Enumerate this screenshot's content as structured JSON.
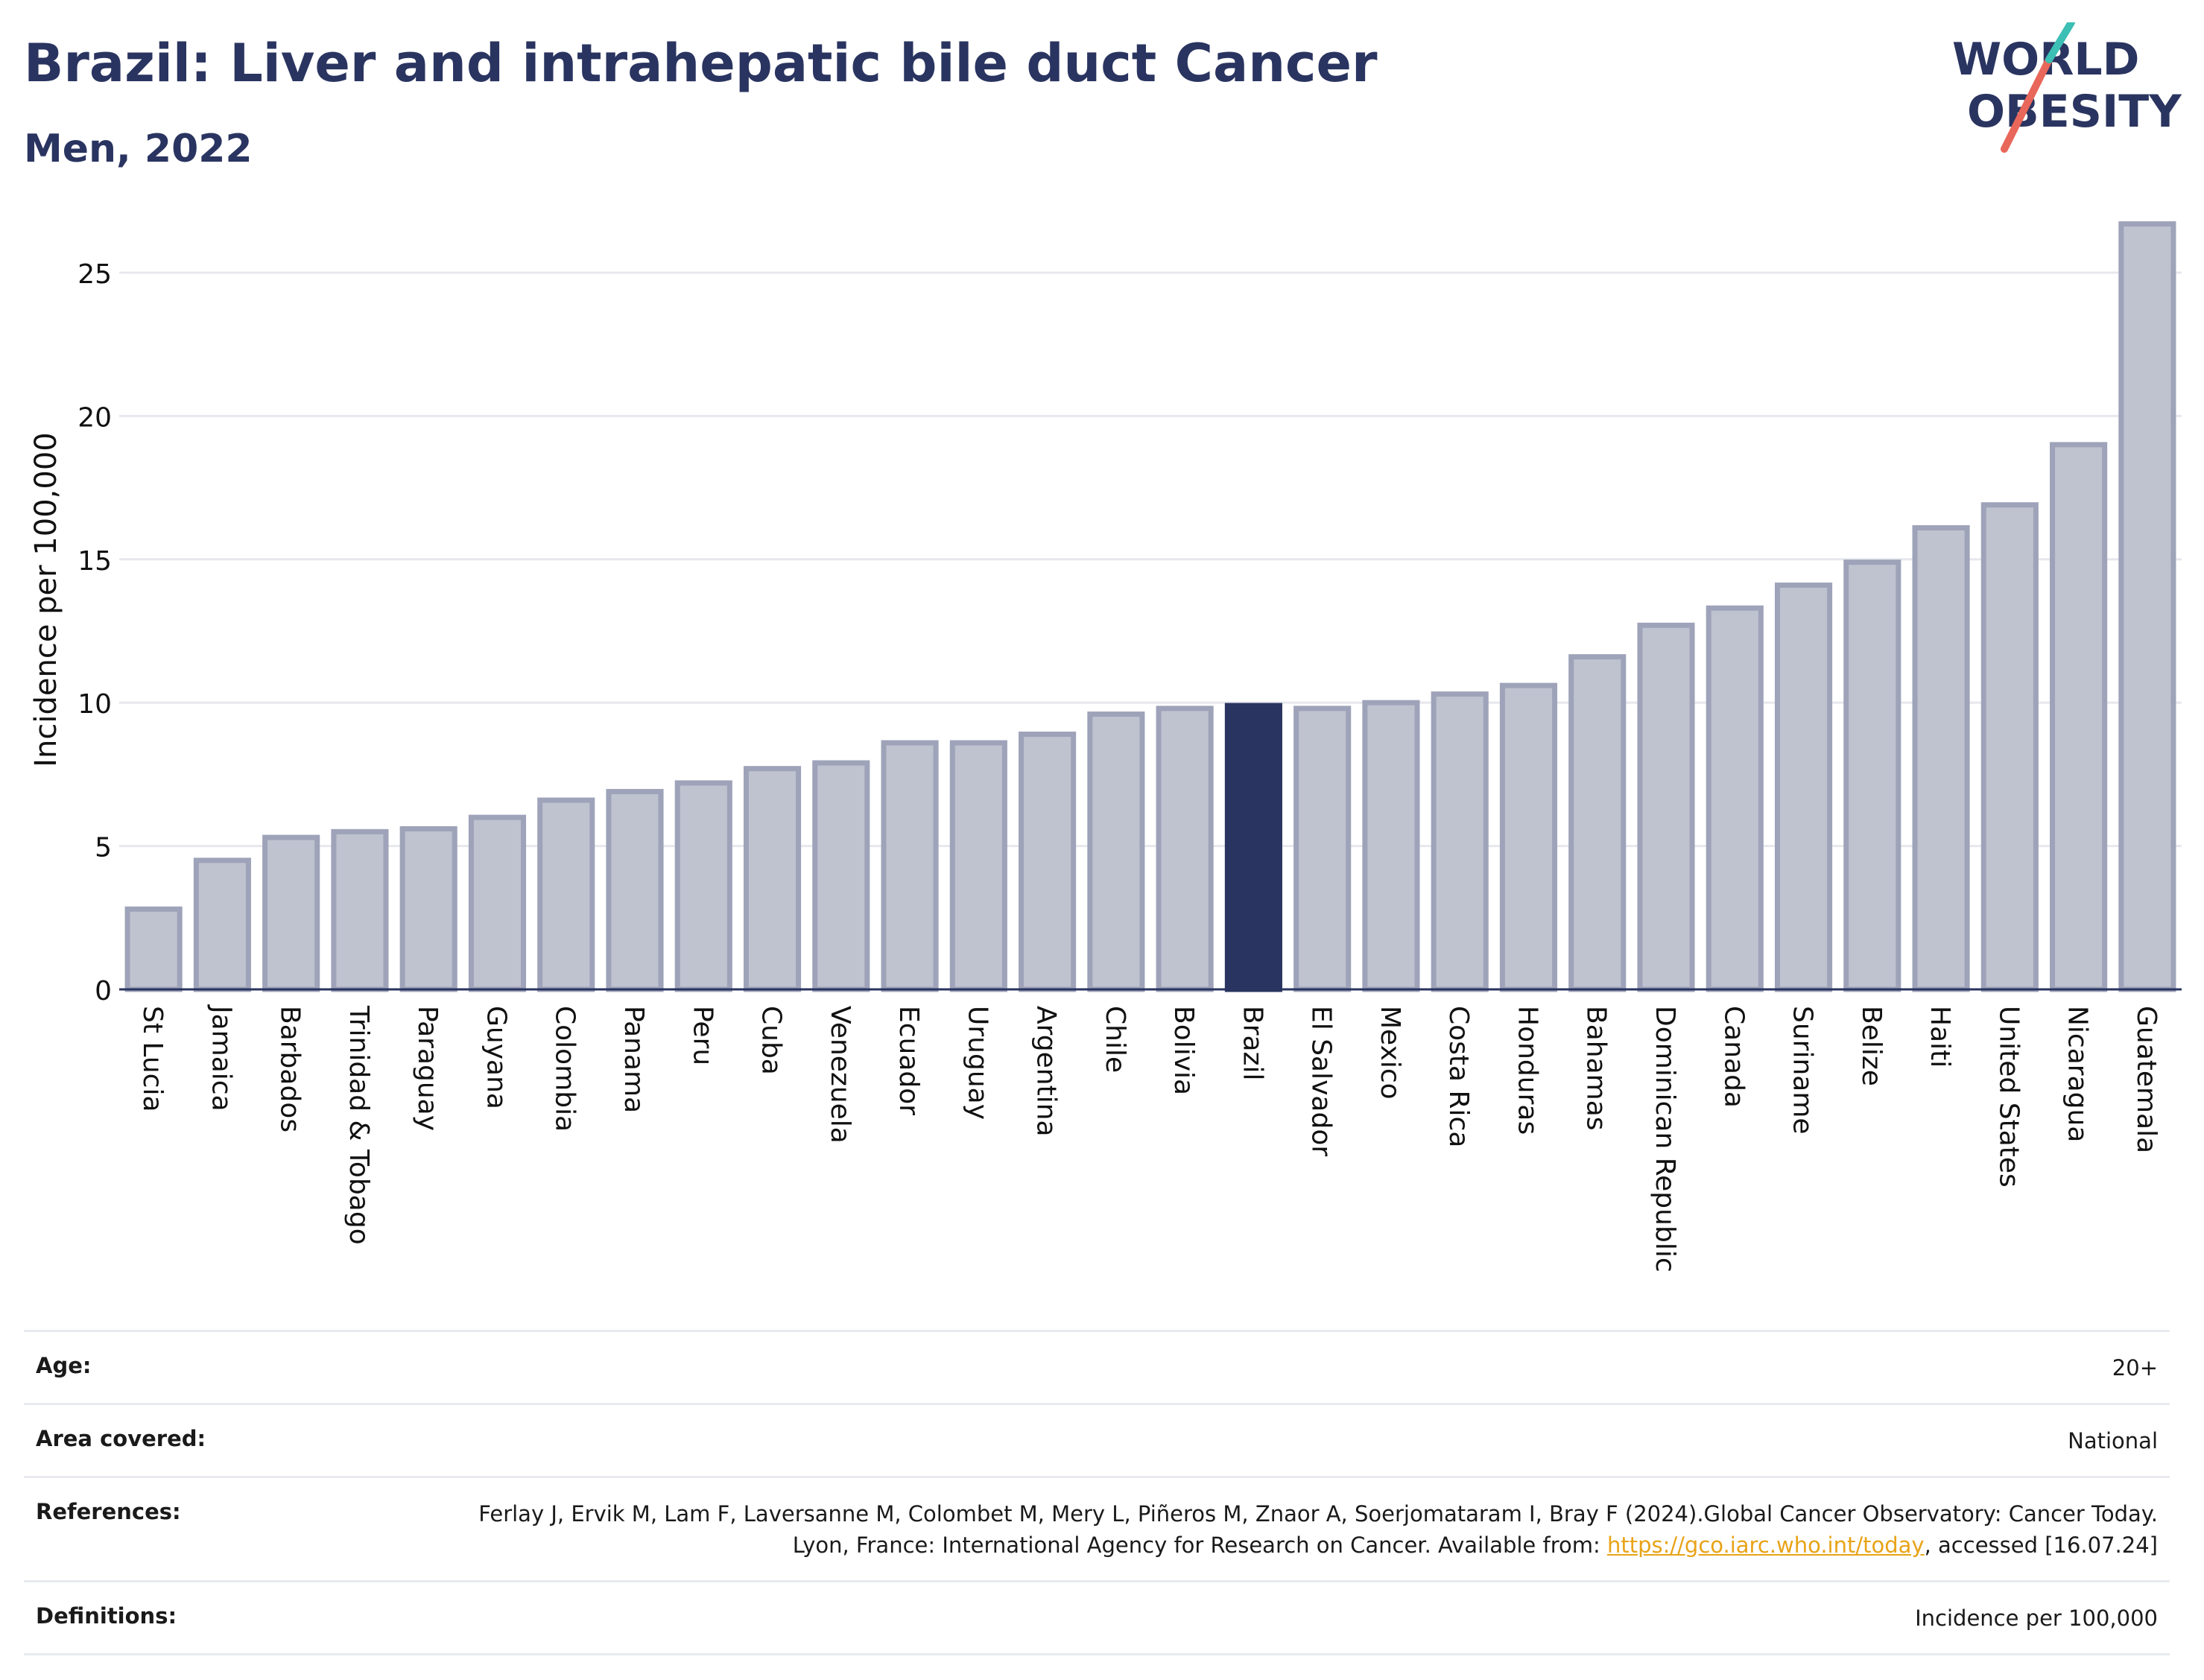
{
  "header": {
    "title": "Brazil: Liver and intrahepatic bile duct Cancer",
    "subtitle": "Men, 2022"
  },
  "logo": {
    "line1": "WORLD",
    "line2": "OBESITY"
  },
  "chart_data": {
    "type": "bar",
    "ylabel": "Incidence per 100,000",
    "xlabel": "",
    "ylim": [
      0,
      27
    ],
    "yticks": [
      0,
      5,
      10,
      15,
      20,
      25
    ],
    "grid": true,
    "categories": [
      "St Lucia",
      "Jamaica",
      "Barbados",
      "Trinidad & Tobago",
      "Paraguay",
      "Guyana",
      "Colombia",
      "Panama",
      "Peru",
      "Cuba",
      "Venezuela",
      "Ecuador",
      "Uruguay",
      "Argentina",
      "Chile",
      "Bolivia",
      "Brazil",
      "El Salvador",
      "Mexico",
      "Costa Rica",
      "Honduras",
      "Bahamas",
      "Dominican Republic",
      "Canada",
      "Suriname",
      "Belize",
      "Haiti",
      "United States",
      "Nicaragua",
      "Guatemala"
    ],
    "values": [
      2.8,
      4.5,
      5.3,
      5.5,
      5.6,
      6.0,
      6.6,
      6.9,
      7.2,
      7.7,
      7.9,
      8.6,
      8.6,
      8.9,
      9.6,
      9.8,
      9.9,
      9.8,
      10.0,
      10.3,
      10.6,
      11.6,
      12.7,
      13.3,
      14.1,
      14.9,
      16.1,
      16.9,
      19.0,
      26.7
    ],
    "highlight": "Brazil",
    "colors": {
      "bar": "#bfc2cf",
      "bar_border": "#9ea3b9",
      "highlight": "#2a3460"
    }
  },
  "meta": {
    "age_label": "Age:",
    "age_value": "20+",
    "area_label": "Area covered:",
    "area_value": "National",
    "refs_label": "References:",
    "refs_text_1": "Ferlay J, Ervik M, Lam F, Laversanne M, Colombet M, Mery L, Piñeros M, Znaor A, Soerjomataram I, Bray F (2024).Global Cancer Observatory: Cancer Today. Lyon, France: International Agency for Research on Cancer. Available from:",
    "refs_link": "https://gco.iarc.who.int/today",
    "refs_text_2": ", accessed [16.07.24]",
    "defs_label": "Definitions:",
    "defs_value": "Incidence per 100,000"
  }
}
